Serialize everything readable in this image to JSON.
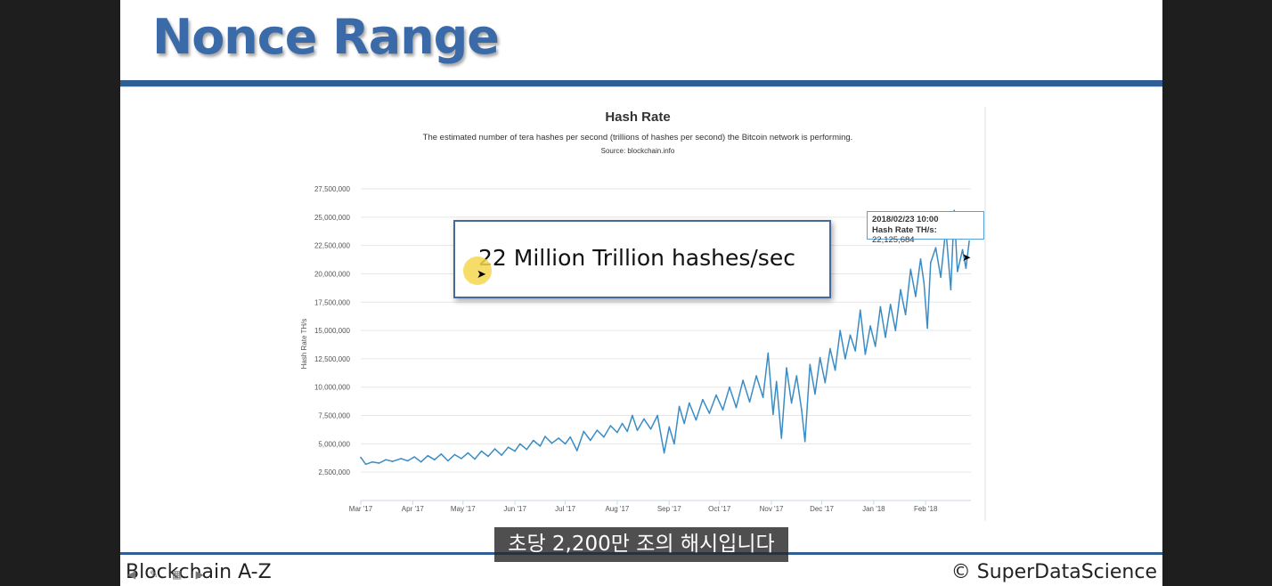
{
  "slide": {
    "title": "Nonce Range",
    "footer_left": "Blockchain A-Z",
    "footer_right": "© SuperDataScience",
    "subtitle": "초당 2,200만 조의 해시입니다",
    "callout": "22 Million Trillion hashes/sec",
    "colors": {
      "title": "#3a6aa8",
      "rule": "#2f5f95",
      "line": "#3a8cc4"
    }
  },
  "tooltip": {
    "date": "2018/02/23 10:00",
    "label": "Hash Rate TH/s:",
    "value": "22,125,684"
  },
  "chart_data": {
    "type": "line",
    "title": "Hash Rate",
    "subtitle": "The estimated number of tera hashes per second (trillions of hashes per second) the Bitcoin network is performing.",
    "source": "Source: blockchain.info",
    "ylabel": "Hash Rate TH/s",
    "ylim": [
      0,
      27500000
    ],
    "yticks": [
      2500000,
      5000000,
      7500000,
      10000000,
      12500000,
      15000000,
      17500000,
      20000000,
      22500000,
      25000000,
      27500000
    ],
    "ytick_labels": [
      "2,500,000",
      "5,000,000",
      "7,500,000",
      "10,000,000",
      "12,500,000",
      "15,000,000",
      "17,500,000",
      "20,000,000",
      "22,500,000",
      "25,000,000",
      "27,500,000"
    ],
    "xlim": [
      "2017-03-01",
      "2018-02-28"
    ],
    "xticks": [
      "2017-03-01",
      "2017-04-01",
      "2017-05-01",
      "2017-06-01",
      "2017-07-01",
      "2017-08-01",
      "2017-09-01",
      "2017-10-01",
      "2017-11-01",
      "2017-12-01",
      "2018-01-01",
      "2018-02-01"
    ],
    "xtick_labels": [
      "Mar '17",
      "Apr '17",
      "May '17",
      "Jun '17",
      "Jul '17",
      "Aug '17",
      "Sep '17",
      "Oct '17",
      "Nov '17",
      "Dec '17",
      "Jan '18",
      "Feb '18"
    ],
    "grid": true,
    "legend": "none",
    "series": [
      {
        "points": [
          [
            "2017-03-01",
            3800000
          ],
          [
            "2017-03-04",
            3200000
          ],
          [
            "2017-03-08",
            3400000
          ],
          [
            "2017-03-12",
            3300000
          ],
          [
            "2017-03-16",
            3600000
          ],
          [
            "2017-03-20",
            3450000
          ],
          [
            "2017-03-25",
            3700000
          ],
          [
            "2017-03-29",
            3500000
          ],
          [
            "2017-04-02",
            3850000
          ],
          [
            "2017-04-06",
            3400000
          ],
          [
            "2017-04-10",
            3950000
          ],
          [
            "2017-04-14",
            3600000
          ],
          [
            "2017-04-18",
            4100000
          ],
          [
            "2017-04-22",
            3500000
          ],
          [
            "2017-04-26",
            4050000
          ],
          [
            "2017-04-30",
            3700000
          ],
          [
            "2017-05-04",
            4200000
          ],
          [
            "2017-05-08",
            3650000
          ],
          [
            "2017-05-12",
            4350000
          ],
          [
            "2017-05-16",
            3900000
          ],
          [
            "2017-05-20",
            4550000
          ],
          [
            "2017-05-24",
            4000000
          ],
          [
            "2017-05-28",
            4700000
          ],
          [
            "2017-06-01",
            4350000
          ],
          [
            "2017-06-04",
            5000000
          ],
          [
            "2017-06-08",
            4500000
          ],
          [
            "2017-06-12",
            5300000
          ],
          [
            "2017-06-16",
            4800000
          ],
          [
            "2017-06-19",
            5650000
          ],
          [
            "2017-06-23",
            5050000
          ],
          [
            "2017-06-27",
            5500000
          ],
          [
            "2017-07-01",
            5000000
          ],
          [
            "2017-07-04",
            5600000
          ],
          [
            "2017-07-08",
            4400000
          ],
          [
            "2017-07-12",
            6100000
          ],
          [
            "2017-07-16",
            5300000
          ],
          [
            "2017-07-20",
            6200000
          ],
          [
            "2017-07-24",
            5600000
          ],
          [
            "2017-07-28",
            6600000
          ],
          [
            "2017-08-01",
            6000000
          ],
          [
            "2017-08-04",
            6800000
          ],
          [
            "2017-08-07",
            6100000
          ],
          [
            "2017-08-10",
            7500000
          ],
          [
            "2017-08-13",
            6200000
          ],
          [
            "2017-08-17",
            7200000
          ],
          [
            "2017-08-21",
            6300000
          ],
          [
            "2017-08-25",
            7500000
          ],
          [
            "2017-08-29",
            4200000
          ],
          [
            "2017-09-01",
            6500000
          ],
          [
            "2017-09-04",
            5000000
          ],
          [
            "2017-09-07",
            8300000
          ],
          [
            "2017-09-10",
            6800000
          ],
          [
            "2017-09-13",
            8600000
          ],
          [
            "2017-09-17",
            7100000
          ],
          [
            "2017-09-21",
            8900000
          ],
          [
            "2017-09-25",
            7700000
          ],
          [
            "2017-09-29",
            9300000
          ],
          [
            "2017-10-03",
            8000000
          ],
          [
            "2017-10-07",
            10000000
          ],
          [
            "2017-10-11",
            8200000
          ],
          [
            "2017-10-15",
            10600000
          ],
          [
            "2017-10-19",
            8700000
          ],
          [
            "2017-10-23",
            11000000
          ],
          [
            "2017-10-27",
            9100000
          ],
          [
            "2017-10-30",
            13000000
          ],
          [
            "2017-11-02",
            7600000
          ],
          [
            "2017-11-04",
            10500000
          ],
          [
            "2017-11-07",
            5500000
          ],
          [
            "2017-11-10",
            11700000
          ],
          [
            "2017-11-13",
            8600000
          ],
          [
            "2017-11-16",
            11000000
          ],
          [
            "2017-11-19",
            8000000
          ],
          [
            "2017-11-21",
            5200000
          ],
          [
            "2017-11-24",
            12000000
          ],
          [
            "2017-11-27",
            9400000
          ],
          [
            "2017-11-30",
            12600000
          ],
          [
            "2017-12-03",
            10400000
          ],
          [
            "2017-12-06",
            13400000
          ],
          [
            "2017-12-09",
            11500000
          ],
          [
            "2017-12-12",
            15000000
          ],
          [
            "2017-12-15",
            12500000
          ],
          [
            "2017-12-18",
            14600000
          ],
          [
            "2017-12-21",
            13200000
          ],
          [
            "2017-12-24",
            16800000
          ],
          [
            "2017-12-27",
            12900000
          ],
          [
            "2017-12-30",
            15400000
          ],
          [
            "2018-01-02",
            13600000
          ],
          [
            "2018-01-05",
            17100000
          ],
          [
            "2018-01-08",
            14400000
          ],
          [
            "2018-01-11",
            17300000
          ],
          [
            "2018-01-14",
            15000000
          ],
          [
            "2018-01-17",
            18600000
          ],
          [
            "2018-01-20",
            16400000
          ],
          [
            "2018-01-23",
            20400000
          ],
          [
            "2018-01-26",
            18000000
          ],
          [
            "2018-01-29",
            21300000
          ],
          [
            "2018-01-31",
            19200000
          ],
          [
            "2018-02-02",
            15200000
          ],
          [
            "2018-02-04",
            21000000
          ],
          [
            "2018-02-07",
            22300000
          ],
          [
            "2018-02-10",
            19700000
          ],
          [
            "2018-02-13",
            24000000
          ],
          [
            "2018-02-16",
            18600000
          ],
          [
            "2018-02-18",
            25600000
          ],
          [
            "2018-02-20",
            20200000
          ],
          [
            "2018-02-23",
            22125684
          ],
          [
            "2018-02-25",
            20500000
          ],
          [
            "2018-02-27",
            22900000
          ]
        ]
      }
    ]
  }
}
